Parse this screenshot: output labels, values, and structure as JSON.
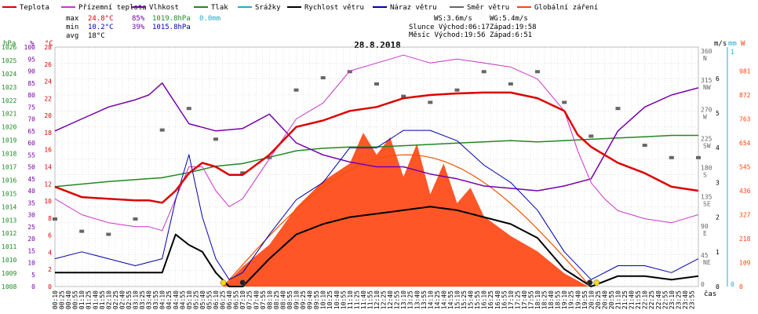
{
  "legend": [
    {
      "label": "Teplota",
      "color": "#dd0000"
    },
    {
      "label": "Přízemní teplota",
      "color": "#cc33cc"
    },
    {
      "label": "Vlhkost",
      "color": "#7700aa"
    },
    {
      "label": "Tlak",
      "color": "#228822"
    },
    {
      "label": "Srážky",
      "color": "#22aacc"
    },
    {
      "label": "Rychlost větru",
      "color": "#000000"
    },
    {
      "label": "Náraz větru",
      "color": "#0000aa"
    },
    {
      "label": "Směr větru",
      "color": "#666666"
    },
    {
      "label": "Globální záření",
      "color": "#ff4411"
    }
  ],
  "stats": {
    "max": {
      "label": "max",
      "temp": "24.8°C",
      "hum": "85%",
      "press": "1019.8hPa",
      "rain": "0.0mm"
    },
    "min": {
      "label": "min",
      "temp": "10.2°C",
      "hum": "39%",
      "press": "1015.8hPa"
    },
    "avg": {
      "label": "avg",
      "temp": "18°C"
    }
  },
  "info": {
    "ws": "WS:3.6m/s",
    "wg": "WG:5.4m/s",
    "sun_rise": "Slunce Východ:06:17",
    "sun_set": "Západ:19:58",
    "moon_rise": "Měsíc Východ:19:56",
    "moon_set": "Západ:6:51"
  },
  "date": "28.8.2018",
  "axes": {
    "hpa_unit": "hPa",
    "pct_unit": "%",
    "temp_unit": "°C",
    "wind_unit": "m/s",
    "rain_unit": "mm",
    "rad_unit": "W",
    "time_unit": "čas",
    "hpa_ticks": [
      "1026",
      "1025",
      "1024",
      "1023",
      "1022",
      "1021",
      "1020",
      "1019",
      "1018",
      "1017",
      "1016",
      "1015",
      "1014",
      "1013",
      "1012",
      "1011",
      "1010",
      "1009",
      "1008"
    ],
    "pct_ticks": [
      "100",
      "95",
      "90",
      "85",
      "80",
      "75",
      "70",
      "65",
      "60",
      "55",
      "50",
      "45",
      "40",
      "35",
      "30",
      "25",
      "20",
      "15",
      "10",
      "5",
      "0"
    ],
    "temp_ticks": [
      "28",
      "26",
      "24",
      "22",
      "20",
      "18",
      "16",
      "14",
      "12",
      "10",
      "8",
      "6",
      "4",
      "2",
      "0"
    ],
    "dir_ticks": [
      {
        "deg": "360",
        "lbl": "N"
      },
      {
        "deg": "315",
        "lbl": "NW"
      },
      {
        "deg": "270",
        "lbl": "W"
      },
      {
        "deg": "225",
        "lbl": "SW"
      },
      {
        "deg": "180",
        "lbl": "S"
      },
      {
        "deg": "135",
        "lbl": "SE"
      },
      {
        "deg": "90",
        "lbl": "E"
      },
      {
        "deg": "45",
        "lbl": "NE"
      },
      {
        "deg": "0",
        "lbl": ""
      }
    ],
    "wind_ticks": [
      "6",
      "5",
      "4",
      "3",
      "2",
      "1",
      "0"
    ],
    "rain_ticks": [
      "1",
      "0"
    ],
    "rad_ticks": [
      "981",
      "872",
      "763",
      "654",
      "545",
      "436",
      "327",
      "218",
      "109",
      "0"
    ],
    "time_labels": [
      "00:10",
      "00:25",
      "00:40",
      "00:55",
      "01:10",
      "01:25",
      "01:40",
      "01:55",
      "02:10",
      "02:25",
      "02:40",
      "02:55",
      "03:10",
      "03:25",
      "03:40",
      "03:55",
      "04:10",
      "04:25",
      "04:40",
      "04:55",
      "05:10",
      "05:25",
      "05:40",
      "05:55",
      "06:10",
      "06:25",
      "06:40",
      "06:55",
      "07:10",
      "07:25",
      "07:40",
      "07:55",
      "08:10",
      "08:25",
      "08:40",
      "08:55",
      "09:10",
      "09:25",
      "09:40",
      "09:55",
      "10:10",
      "10:25",
      "10:40",
      "10:55",
      "11:10",
      "11:25",
      "11:40",
      "11:55",
      "12:10",
      "12:25",
      "12:40",
      "12:55",
      "13:10",
      "13:25",
      "13:40",
      "13:55",
      "14:10",
      "14:25",
      "14:40",
      "14:55",
      "15:10",
      "15:25",
      "15:40",
      "15:55",
      "16:10",
      "16:25",
      "16:40",
      "16:55",
      "17:10",
      "17:25",
      "17:40",
      "17:55",
      "18:10",
      "18:25",
      "18:40",
      "18:55",
      "19:10",
      "19:25",
      "19:40",
      "19:55",
      "20:10",
      "20:25",
      "20:40",
      "20:55",
      "21:10",
      "21:25",
      "21:40",
      "21:55",
      "22:10",
      "22:25",
      "22:40",
      "22:55",
      "23:10",
      "23:25",
      "23:40",
      "23:55"
    ]
  },
  "chart_data": {
    "type": "line",
    "title": "28.8.2018",
    "x_unit": "hours",
    "temp_range": [
      0,
      30
    ],
    "hpa_range": [
      1008,
      1026.7
    ],
    "pct_range": [
      0,
      100
    ],
    "wind_range": [
      0,
      6.9
    ],
    "rad_range": [
      0,
      1090
    ],
    "series": [
      {
        "name": "Teplota",
        "color": "#dd0000",
        "x": [
          0,
          1,
          2,
          3,
          3.5,
          4,
          4.5,
          5,
          5.5,
          6,
          6.5,
          7,
          8,
          9,
          10,
          11,
          12,
          13,
          14,
          15,
          16,
          17,
          18,
          19,
          19.5,
          20,
          20.5,
          21,
          22,
          23,
          24
        ],
        "y": [
          12.5,
          11.2,
          11.0,
          10.8,
          10.8,
          10.5,
          12.0,
          14.2,
          15.5,
          15.0,
          14.0,
          14.0,
          16.5,
          20.0,
          20.8,
          22.0,
          22.5,
          23.6,
          24.0,
          24.2,
          24.3,
          24.3,
          23.6,
          22.0,
          19.0,
          17.5,
          16.5,
          15.5,
          14.2,
          12.5,
          12.0
        ]
      },
      {
        "name": "Přízemní teplota",
        "color": "#cc33cc",
        "x": [
          0,
          1,
          2,
          3,
          3.5,
          4,
          4.5,
          5,
          5.5,
          6,
          6.5,
          7,
          8,
          9,
          10,
          11,
          12,
          13,
          14,
          15,
          16,
          17,
          18,
          19,
          19.5,
          20,
          20.5,
          21,
          22,
          23,
          24
        ],
        "y": [
          11.0,
          9.0,
          8.0,
          7.5,
          7.5,
          7.0,
          11.0,
          15.0,
          15.0,
          12.0,
          10.0,
          11.0,
          16.0,
          21.0,
          23.0,
          27.0,
          28.0,
          29.0,
          28.0,
          28.5,
          28.0,
          27.5,
          26.0,
          22.0,
          17.0,
          13.0,
          11.0,
          9.5,
          8.5,
          8.0,
          9.0
        ]
      },
      {
        "name": "Vlhkost",
        "color": "#7700aa",
        "x": [
          0,
          1,
          2,
          3,
          3.5,
          4,
          5,
          6,
          7,
          8,
          9,
          10,
          11,
          12,
          13,
          14,
          15,
          16,
          17,
          18,
          19,
          20,
          21,
          22,
          23,
          24
        ],
        "y": [
          65,
          70,
          75,
          78,
          80,
          85,
          68,
          65,
          66,
          72,
          60,
          55,
          52,
          50,
          50,
          47,
          45,
          42,
          41,
          40,
          42,
          45,
          65,
          75,
          80,
          83
        ]
      },
      {
        "name": "Tlak",
        "color": "#228822",
        "x": [
          0,
          2,
          4,
          5,
          6,
          7,
          8,
          9,
          10,
          11,
          12,
          13,
          14,
          15,
          16,
          17,
          18,
          19,
          20,
          21,
          22,
          23,
          24
        ],
        "y": [
          1015.8,
          1016.2,
          1016.5,
          1016.9,
          1017.4,
          1017.6,
          1018.1,
          1018.6,
          1018.8,
          1018.9,
          1018.9,
          1019.0,
          1019.1,
          1019.2,
          1019.3,
          1019.4,
          1019.3,
          1019.4,
          1019.5,
          1019.6,
          1019.7,
          1019.8,
          1019.8
        ]
      },
      {
        "name": "Rychlost větru",
        "color": "#000000",
        "x": [
          0,
          1,
          2,
          3,
          4,
          4.5,
          5,
          5.5,
          6,
          6.5,
          7,
          8,
          9,
          10,
          11,
          12,
          13,
          14,
          15,
          16,
          17,
          18,
          19,
          20,
          21,
          22,
          23,
          24
        ],
        "y": [
          0.4,
          0.4,
          0.4,
          0.4,
          0.4,
          1.5,
          1.2,
          1.0,
          0.4,
          0.0,
          0.0,
          0.8,
          1.5,
          1.8,
          2.0,
          2.1,
          2.2,
          2.3,
          2.2,
          2.0,
          1.8,
          1.4,
          0.5,
          0.0,
          0.3,
          0.3,
          0.2,
          0.3
        ]
      },
      {
        "name": "Náraz větru",
        "color": "#0000aa",
        "x": [
          0,
          1,
          2,
          3,
          4,
          4.5,
          5,
          5.5,
          6,
          6.5,
          7,
          8,
          9,
          10,
          11,
          12,
          13,
          14,
          15,
          16,
          17,
          18,
          19,
          20,
          21,
          22,
          23,
          24
        ],
        "y": [
          0.8,
          1.0,
          0.8,
          0.6,
          0.8,
          2.5,
          3.8,
          2.0,
          0.8,
          0.2,
          0.4,
          1.5,
          2.5,
          3.0,
          4.0,
          4.0,
          4.5,
          4.5,
          4.2,
          3.5,
          3.0,
          2.2,
          1.0,
          0.2,
          0.6,
          0.6,
          0.4,
          0.8
        ]
      },
      {
        "name": "Globální záření",
        "color": "#ff4411",
        "type": "area",
        "x": [
          6.3,
          7,
          8,
          9,
          10,
          11,
          11.5,
          12,
          12.5,
          13,
          13.5,
          14,
          14.5,
          15,
          15.5,
          16,
          17,
          18,
          19,
          19.9
        ],
        "y": [
          0,
          90,
          190,
          360,
          480,
          560,
          700,
          600,
          680,
          500,
          650,
          420,
          560,
          380,
          450,
          320,
          230,
          160,
          60,
          0
        ]
      },
      {
        "name": "Směr větru",
        "color": "#666666",
        "type": "scatter",
        "x": [
          0,
          1,
          2,
          3,
          4,
          5,
          6,
          7,
          8,
          9,
          10,
          11,
          12,
          13,
          14,
          15,
          16,
          17,
          18,
          19,
          20,
          21,
          22,
          23,
          24
        ],
        "y": [
          110,
          90,
          85,
          110,
          255,
          290,
          240,
          185,
          210,
          320,
          340,
          350,
          330,
          310,
          300,
          320,
          350,
          330,
          350,
          300,
          245,
          290,
          230,
          210,
          210
        ]
      }
    ]
  }
}
